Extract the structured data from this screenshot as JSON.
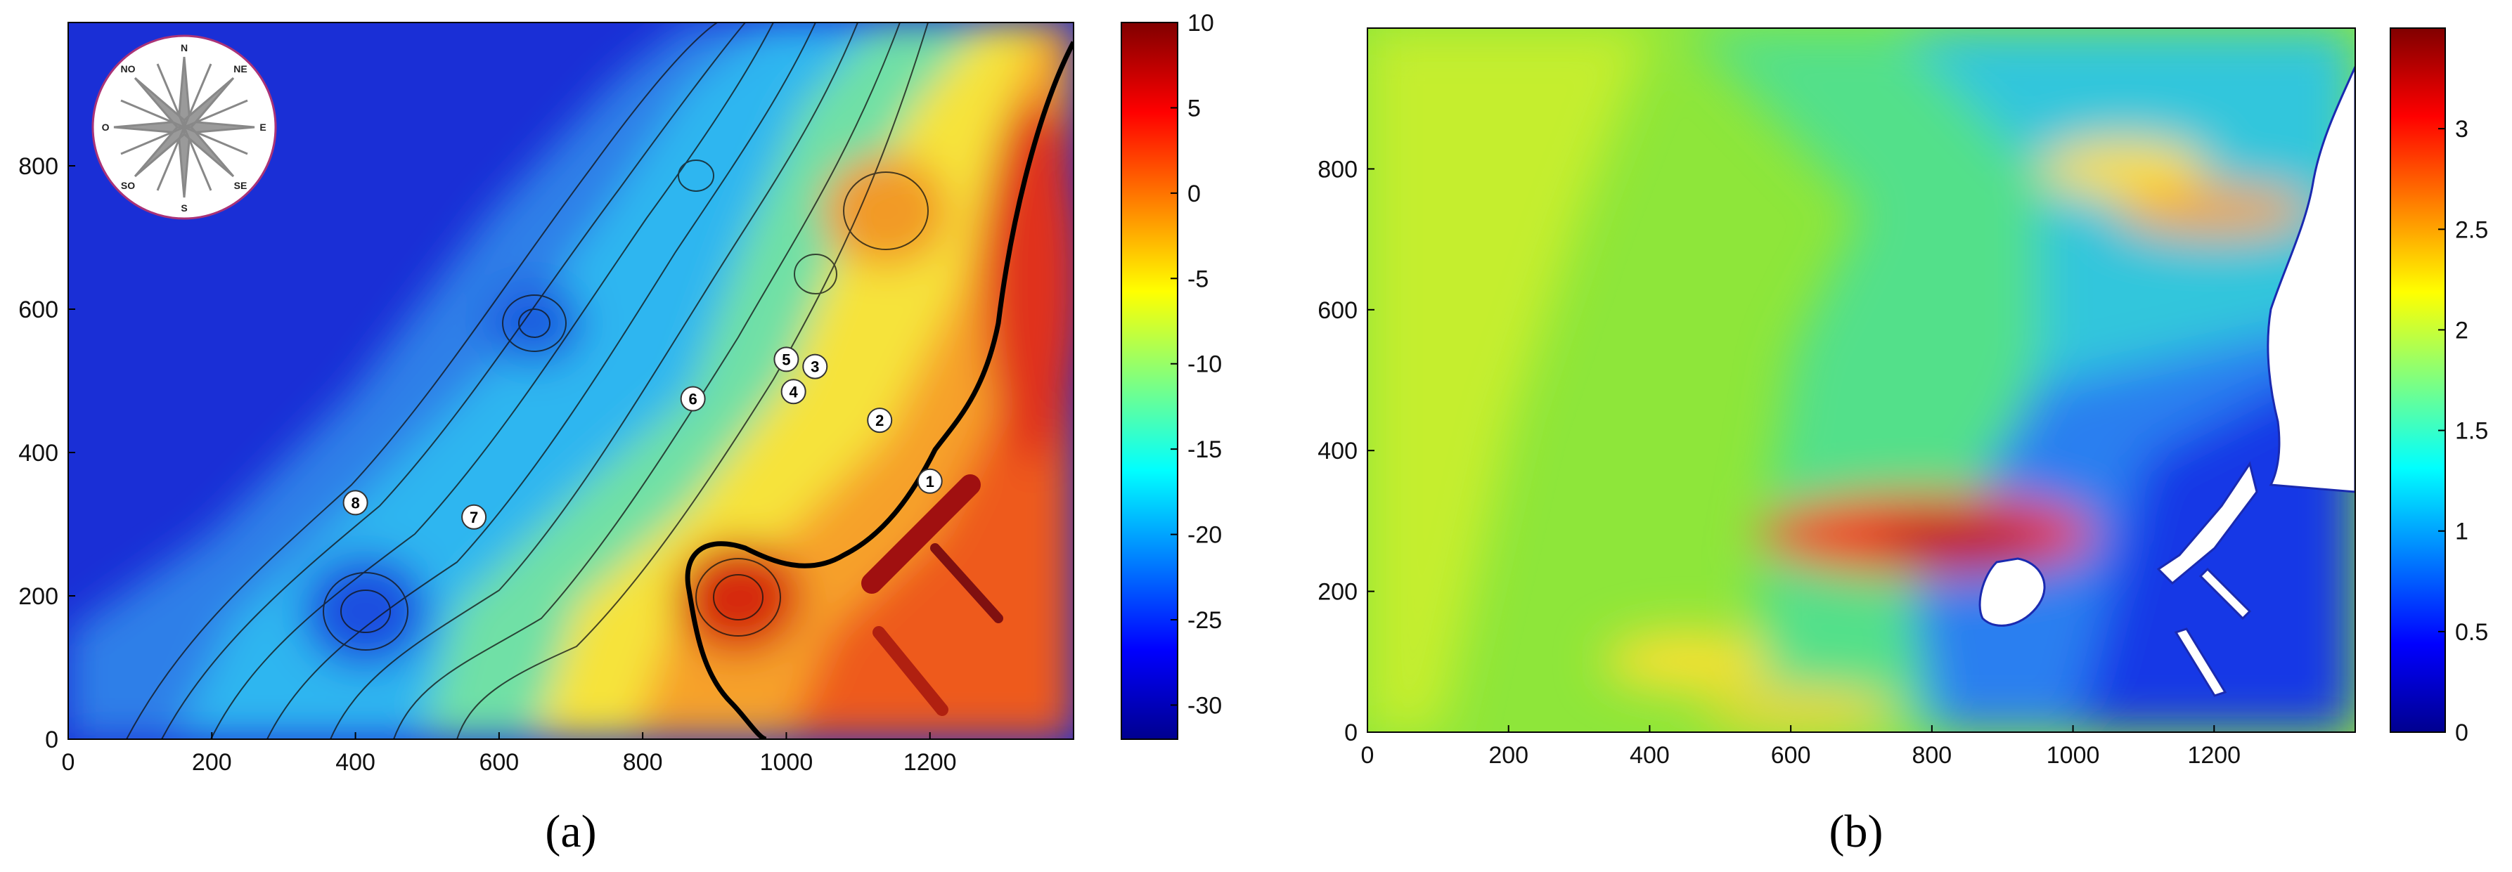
{
  "chart_data": [
    {
      "id": "a",
      "type": "heatmap",
      "caption": "(a)",
      "xlim": [
        0,
        1400
      ],
      "ylim": [
        0,
        1000
      ],
      "x_ticks": [
        0,
        200,
        400,
        600,
        800,
        1000,
        1200
      ],
      "y_ticks": [
        0,
        200,
        400,
        600,
        800
      ],
      "colorbar": {
        "min": -32,
        "max": 10,
        "ticks": [
          10,
          5,
          0,
          -5,
          -10,
          -15,
          -20,
          -25,
          -30
        ],
        "colormap": [
          "#00008f",
          "#0000ff",
          "#0080ff",
          "#00ffff",
          "#80ff80",
          "#ffff00",
          "#ff8000",
          "#ff0000",
          "#800000"
        ]
      },
      "contours": "black isolines overlay",
      "markers": [
        {
          "label": "1",
          "x": 1200,
          "y": 360
        },
        {
          "label": "2",
          "x": 1130,
          "y": 445
        },
        {
          "label": "3",
          "x": 1040,
          "y": 520
        },
        {
          "label": "4",
          "x": 1010,
          "y": 485
        },
        {
          "label": "5",
          "x": 1000,
          "y": 530
        },
        {
          "label": "6",
          "x": 870,
          "y": 475
        },
        {
          "label": "7",
          "x": 565,
          "y": 310
        },
        {
          "label": "8",
          "x": 400,
          "y": 330
        }
      ],
      "compass_rose": {
        "labels": [
          "N",
          "NE",
          "E",
          "SE",
          "S",
          "SO",
          "O",
          "NO"
        ]
      }
    },
    {
      "id": "b",
      "type": "heatmap",
      "caption": "(b)",
      "xlim": [
        0,
        1400
      ],
      "ylim": [
        0,
        1000
      ],
      "x_ticks": [
        0,
        200,
        400,
        600,
        800,
        1000,
        1200
      ],
      "y_ticks": [
        0,
        200,
        400,
        600,
        800
      ],
      "colorbar": {
        "min": 0,
        "max": 3.5,
        "ticks": [
          "3",
          "2.5",
          "2",
          "1.5",
          "1",
          "0.5",
          "0"
        ],
        "colormap": [
          "#00008f",
          "#0000ff",
          "#0080ff",
          "#00ffff",
          "#80ff80",
          "#ffff00",
          "#ff8000",
          "#ff0000",
          "#800000"
        ]
      }
    }
  ]
}
